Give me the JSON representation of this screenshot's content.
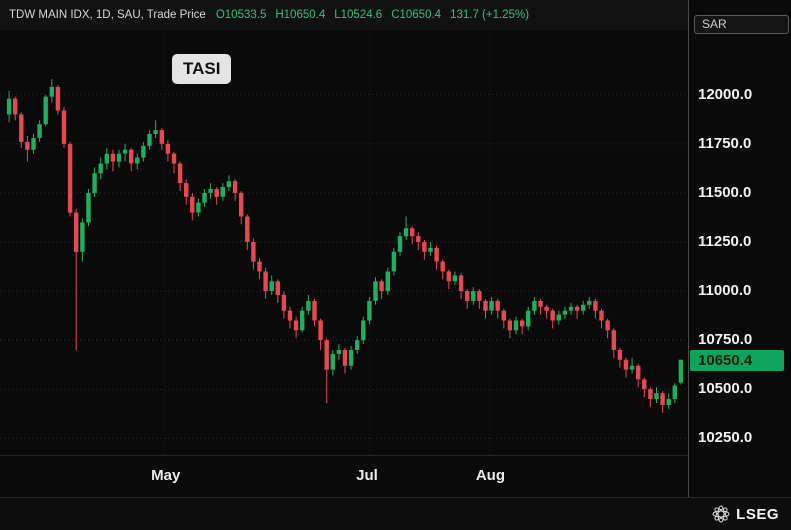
{
  "header": {
    "title": "TDW MAIN IDX, 1D, SAU, Trade Price",
    "open_label": "O10533.5",
    "high_label": "H10650.4",
    "low_label": "L10524.6",
    "close_label": "C10650.4",
    "change_label": "131.7 (+1.25%)"
  },
  "axis": {
    "currency": "SAR",
    "y_ticks": [
      "12000.0",
      "11750.0",
      "11500.0",
      "11250.0",
      "11000.0",
      "10750.0",
      "10500.0",
      "10250.0"
    ],
    "x_ticks": [
      {
        "label": "May",
        "pos": 0.24
      },
      {
        "label": "Jul",
        "pos": 0.538
      },
      {
        "label": "Aug",
        "pos": 0.712
      }
    ],
    "price_badge": "10650.4"
  },
  "chart_label": "TASI",
  "footer": {
    "brand": "LSEG"
  },
  "colors": {
    "up": "#1faf5f",
    "down": "#e8484f",
    "badge": "#10a35d",
    "grid": "#2a2a2a",
    "vgrid": "#1e1e1e"
  },
  "chart_data": {
    "type": "candlestick",
    "title": "TASI",
    "instrument": "TDW MAIN IDX, 1D, SAU, Trade Price",
    "interval": "1D",
    "currency": "SAR",
    "ylim": [
      10165,
      12330
    ],
    "y_gridlines": [
      12000,
      11750,
      11500,
      11250,
      11000,
      10750,
      10500,
      10250
    ],
    "x_tick_labels": [
      "May",
      "Jul",
      "Aug"
    ],
    "last_price": 10650.4,
    "last_ohlc": {
      "open": 10533.5,
      "high": 10650.4,
      "low": 10524.6,
      "close": 10650.4,
      "change": 131.7,
      "change_pct": 1.25
    },
    "candles": [
      [
        11900,
        12020,
        11860,
        11980
      ],
      [
        11980,
        11990,
        11870,
        11900
      ],
      [
        11900,
        11910,
        11730,
        11760
      ],
      [
        11760,
        11790,
        11660,
        11720
      ],
      [
        11720,
        11800,
        11700,
        11780
      ],
      [
        11780,
        11870,
        11760,
        11850
      ],
      [
        11850,
        12000,
        11840,
        11990
      ],
      [
        11990,
        12080,
        11960,
        12040
      ],
      [
        12040,
        12050,
        11900,
        11920
      ],
      [
        11920,
        11940,
        11730,
        11750
      ],
      [
        11750,
        11760,
        11380,
        11400
      ],
      [
        11400,
        11420,
        10700,
        11200
      ],
      [
        11200,
        11370,
        11150,
        11350
      ],
      [
        11350,
        11520,
        11330,
        11500
      ],
      [
        11500,
        11630,
        11480,
        11600
      ],
      [
        11600,
        11680,
        11570,
        11650
      ],
      [
        11650,
        11730,
        11620,
        11700
      ],
      [
        11700,
        11720,
        11610,
        11660
      ],
      [
        11660,
        11720,
        11630,
        11700
      ],
      [
        11700,
        11750,
        11660,
        11720
      ],
      [
        11720,
        11730,
        11610,
        11650
      ],
      [
        11650,
        11700,
        11620,
        11680
      ],
      [
        11680,
        11760,
        11660,
        11740
      ],
      [
        11740,
        11820,
        11720,
        11800
      ],
      [
        11800,
        11870,
        11780,
        11820
      ],
      [
        11820,
        11830,
        11720,
        11750
      ],
      [
        11750,
        11770,
        11660,
        11700
      ],
      [
        11700,
        11710,
        11600,
        11650
      ],
      [
        11650,
        11660,
        11510,
        11550
      ],
      [
        11550,
        11570,
        11440,
        11480
      ],
      [
        11480,
        11500,
        11360,
        11400
      ],
      [
        11400,
        11470,
        11380,
        11450
      ],
      [
        11450,
        11520,
        11430,
        11500
      ],
      [
        11500,
        11550,
        11470,
        11520
      ],
      [
        11520,
        11530,
        11440,
        11480
      ],
      [
        11480,
        11550,
        11460,
        11530
      ],
      [
        11530,
        11590,
        11510,
        11560
      ],
      [
        11560,
        11570,
        11460,
        11500
      ],
      [
        11500,
        11510,
        11340,
        11380
      ],
      [
        11380,
        11390,
        11210,
        11250
      ],
      [
        11250,
        11270,
        11110,
        11150
      ],
      [
        11150,
        11170,
        11060,
        11100
      ],
      [
        11100,
        11120,
        10960,
        11000
      ],
      [
        11000,
        11080,
        10980,
        11050
      ],
      [
        11050,
        11060,
        10940,
        10980
      ],
      [
        10980,
        11000,
        10860,
        10900
      ],
      [
        10900,
        10920,
        10810,
        10850
      ],
      [
        10850,
        10870,
        10760,
        10800
      ],
      [
        10800,
        10920,
        10790,
        10900
      ],
      [
        10900,
        10980,
        10880,
        10950
      ],
      [
        10950,
        10960,
        10820,
        10850
      ],
      [
        10850,
        10860,
        10700,
        10750
      ],
      [
        10750,
        10760,
        10430,
        10600
      ],
      [
        10600,
        10700,
        10570,
        10680
      ],
      [
        10680,
        10730,
        10650,
        10700
      ],
      [
        10700,
        10710,
        10580,
        10620
      ],
      [
        10620,
        10720,
        10600,
        10700
      ],
      [
        10700,
        10770,
        10680,
        10750
      ],
      [
        10750,
        10870,
        10730,
        10850
      ],
      [
        10850,
        10970,
        10830,
        10950
      ],
      [
        10950,
        11070,
        10930,
        11050
      ],
      [
        11050,
        11060,
        10960,
        11000
      ],
      [
        11000,
        11120,
        10980,
        11100
      ],
      [
        11100,
        11220,
        11080,
        11200
      ],
      [
        11200,
        11300,
        11180,
        11280
      ],
      [
        11280,
        11380,
        11260,
        11320
      ],
      [
        11320,
        11330,
        11240,
        11280
      ],
      [
        11280,
        11300,
        11210,
        11250
      ],
      [
        11250,
        11260,
        11160,
        11200
      ],
      [
        11200,
        11250,
        11180,
        11220
      ],
      [
        11220,
        11230,
        11110,
        11150
      ],
      [
        11150,
        11160,
        11060,
        11100
      ],
      [
        11100,
        11110,
        11010,
        11050
      ],
      [
        11050,
        11100,
        11030,
        11080
      ],
      [
        11080,
        11090,
        10960,
        11000
      ],
      [
        11000,
        11010,
        10910,
        10950
      ],
      [
        10950,
        11020,
        10930,
        11000
      ],
      [
        11000,
        11010,
        10910,
        10950
      ],
      [
        10950,
        10960,
        10860,
        10900
      ],
      [
        10900,
        10970,
        10880,
        10950
      ],
      [
        10950,
        10960,
        10860,
        10900
      ],
      [
        10900,
        10910,
        10810,
        10850
      ],
      [
        10850,
        10860,
        10760,
        10800
      ],
      [
        10800,
        10870,
        10780,
        10850
      ],
      [
        10850,
        10860,
        10780,
        10820
      ],
      [
        10820,
        10920,
        10800,
        10900
      ],
      [
        10900,
        10970,
        10880,
        10950
      ],
      [
        10950,
        10960,
        10880,
        10920
      ],
      [
        10920,
        10930,
        10860,
        10900
      ],
      [
        10900,
        10910,
        10810,
        10850
      ],
      [
        10850,
        10900,
        10830,
        10880
      ],
      [
        10880,
        10920,
        10860,
        10900
      ],
      [
        10900,
        10940,
        10880,
        10920
      ],
      [
        10920,
        10930,
        10860,
        10900
      ],
      [
        10900,
        10950,
        10880,
        10930
      ],
      [
        10930,
        10970,
        10910,
        10950
      ],
      [
        10950,
        10960,
        10860,
        10900
      ],
      [
        10900,
        10910,
        10810,
        10850
      ],
      [
        10850,
        10860,
        10760,
        10800
      ],
      [
        10800,
        10810,
        10660,
        10700
      ],
      [
        10700,
        10710,
        10610,
        10650
      ],
      [
        10650,
        10660,
        10560,
        10600
      ],
      [
        10600,
        10660,
        10580,
        10620
      ],
      [
        10620,
        10630,
        10510,
        10550
      ],
      [
        10550,
        10560,
        10460,
        10500
      ],
      [
        10500,
        10510,
        10410,
        10450
      ],
      [
        10450,
        10510,
        10430,
        10480
      ],
      [
        10480,
        10490,
        10380,
        10420
      ],
      [
        10420,
        10480,
        10400,
        10450
      ],
      [
        10450,
        10530,
        10430,
        10518.7
      ],
      [
        10533.5,
        10650.4,
        10524.6,
        10650.4
      ]
    ]
  }
}
